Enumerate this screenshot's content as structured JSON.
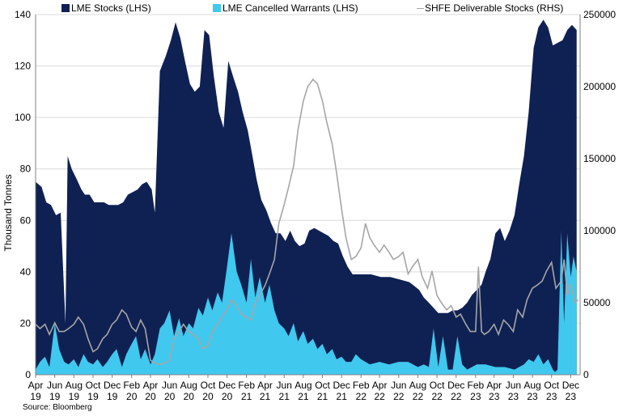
{
  "chart_data": {
    "type": "area",
    "ylabel": "Thousand Tonnes",
    "ylim": [
      0,
      140
    ],
    "y_ticks": [
      0,
      20,
      40,
      60,
      80,
      100,
      120,
      140
    ],
    "y2lim": [
      0,
      250000
    ],
    "y2_ticks": [
      0,
      50000,
      100000,
      150000,
      200000,
      250000
    ],
    "grid": true,
    "legend_placement": "top",
    "x_range": [
      "2019-04-01",
      "2023-12-31"
    ],
    "x_tick_labels": [
      {
        "date": "2019-04-01",
        "month": "Apr",
        "year": "19"
      },
      {
        "date": "2019-06-01",
        "month": "Jun",
        "year": "19"
      },
      {
        "date": "2019-08-01",
        "month": "Aug",
        "year": "19"
      },
      {
        "date": "2019-10-01",
        "month": "Oct",
        "year": "19"
      },
      {
        "date": "2019-12-01",
        "month": "Dec",
        "year": "19"
      },
      {
        "date": "2020-02-01",
        "month": "Feb",
        "year": "20"
      },
      {
        "date": "2020-04-01",
        "month": "Apr",
        "year": "20"
      },
      {
        "date": "2020-06-01",
        "month": "Jun",
        "year": "20"
      },
      {
        "date": "2020-08-01",
        "month": "Aug",
        "year": "20"
      },
      {
        "date": "2020-10-01",
        "month": "Oct",
        "year": "20"
      },
      {
        "date": "2020-12-01",
        "month": "Dec",
        "year": "20"
      },
      {
        "date": "2021-02-01",
        "month": "Feb",
        "year": "21"
      },
      {
        "date": "2021-04-01",
        "month": "Apr",
        "year": "21"
      },
      {
        "date": "2021-06-01",
        "month": "Jun",
        "year": "21"
      },
      {
        "date": "2021-08-01",
        "month": "Aug",
        "year": "21"
      },
      {
        "date": "2021-10-01",
        "month": "Oct",
        "year": "21"
      },
      {
        "date": "2021-12-01",
        "month": "Dec",
        "year": "21"
      },
      {
        "date": "2022-02-01",
        "month": "Feb",
        "year": "22"
      },
      {
        "date": "2022-04-01",
        "month": "Apr",
        "year": "22"
      },
      {
        "date": "2022-06-01",
        "month": "Jun",
        "year": "22"
      },
      {
        "date": "2022-08-01",
        "month": "Aug",
        "year": "22"
      },
      {
        "date": "2022-10-01",
        "month": "Oct",
        "year": "22"
      },
      {
        "date": "2022-12-01",
        "month": "Dec",
        "year": "22"
      },
      {
        "date": "2023-02-01",
        "month": "Feb",
        "year": "23"
      },
      {
        "date": "2023-04-01",
        "month": "Apr",
        "year": "23"
      },
      {
        "date": "2023-06-01",
        "month": "Jun",
        "year": "23"
      },
      {
        "date": "2023-08-01",
        "month": "Aug",
        "year": "23"
      },
      {
        "date": "2023-10-01",
        "month": "Oct",
        "year": "23"
      },
      {
        "date": "2023-12-01",
        "month": "Dec",
        "year": "23"
      }
    ],
    "source": "Source: Bloomberg",
    "series": [
      {
        "name": "LME Stocks (LHS)",
        "axis": "left",
        "type": "area",
        "color": "#0f2153",
        "x": [
          "2019-04-01",
          "2019-04-20",
          "2019-05-05",
          "2019-05-20",
          "2019-06-05",
          "2019-06-20",
          "2019-07-05",
          "2019-07-12",
          "2019-07-25",
          "2019-08-10",
          "2019-08-25",
          "2019-09-05",
          "2019-09-20",
          "2019-10-05",
          "2019-10-20",
          "2019-11-05",
          "2019-11-20",
          "2019-12-05",
          "2019-12-20",
          "2020-01-05",
          "2020-01-20",
          "2020-02-05",
          "2020-02-20",
          "2020-03-05",
          "2020-03-20",
          "2020-04-05",
          "2020-04-15",
          "2020-05-01",
          "2020-05-20",
          "2020-06-05",
          "2020-06-20",
          "2020-07-05",
          "2020-07-20",
          "2020-08-05",
          "2020-08-20",
          "2020-09-05",
          "2020-09-20",
          "2020-10-05",
          "2020-10-20",
          "2020-11-05",
          "2020-11-20",
          "2020-12-05",
          "2020-12-20",
          "2021-01-05",
          "2021-01-20",
          "2021-02-05",
          "2021-02-20",
          "2021-03-05",
          "2021-03-20",
          "2021-04-05",
          "2021-04-20",
          "2021-05-05",
          "2021-05-20",
          "2021-06-05",
          "2021-06-20",
          "2021-07-05",
          "2021-07-20",
          "2021-08-05",
          "2021-08-20",
          "2021-09-05",
          "2021-09-20",
          "2021-10-05",
          "2021-10-20",
          "2021-11-05",
          "2021-11-20",
          "2021-12-05",
          "2021-12-20",
          "2022-01-05",
          "2022-01-20",
          "2022-02-05",
          "2022-02-20",
          "2022-03-05",
          "2022-04-05",
          "2022-05-05",
          "2022-06-05",
          "2022-07-05",
          "2022-08-05",
          "2022-08-20",
          "2022-09-05",
          "2022-09-20",
          "2022-10-05",
          "2022-10-20",
          "2022-11-05",
          "2022-11-20",
          "2022-12-05",
          "2022-12-20",
          "2023-01-05",
          "2023-01-20",
          "2023-02-05",
          "2023-02-20",
          "2023-03-05",
          "2023-03-20",
          "2023-04-05",
          "2023-04-20",
          "2023-05-05",
          "2023-05-20",
          "2023-06-05",
          "2023-06-20",
          "2023-07-05",
          "2023-07-20",
          "2023-08-05",
          "2023-08-20",
          "2023-09-05",
          "2023-09-20",
          "2023-10-05",
          "2023-10-20",
          "2023-11-05",
          "2023-11-20",
          "2023-12-05",
          "2023-12-20"
        ],
        "values": [
          75,
          73,
          67,
          66,
          62,
          63,
          20,
          85,
          80,
          76,
          72,
          70,
          70,
          67,
          67,
          67,
          66,
          66,
          66,
          67,
          70,
          71,
          72,
          74,
          75,
          72,
          63,
          118,
          124,
          130,
          137,
          131,
          122,
          113,
          110,
          112,
          134,
          132,
          116,
          102,
          96,
          122,
          116,
          110,
          102,
          95,
          85,
          76,
          68,
          64,
          59,
          55,
          55,
          52,
          56,
          52,
          50,
          51,
          56,
          57,
          56,
          55,
          54,
          52,
          51,
          46,
          42,
          39,
          39,
          39,
          39,
          39,
          38,
          38,
          37,
          36,
          33,
          30,
          28,
          26,
          24,
          24,
          24,
          25,
          25,
          26,
          28,
          31,
          33,
          35,
          40,
          45,
          55,
          57,
          52,
          56,
          62,
          74,
          85,
          102,
          127,
          135,
          138,
          135,
          128,
          129,
          130,
          134,
          136,
          134
        ]
      },
      {
        "name": "LME Cancelled Warrants (LHS)",
        "axis": "left",
        "type": "area",
        "color": "#40c8ef",
        "x": [
          "2019-04-01",
          "2019-04-15",
          "2019-05-01",
          "2019-05-15",
          "2019-06-01",
          "2019-06-15",
          "2019-07-01",
          "2019-07-15",
          "2019-08-01",
          "2019-08-15",
          "2019-09-01",
          "2019-09-15",
          "2019-10-01",
          "2019-10-15",
          "2019-11-01",
          "2019-11-15",
          "2019-12-01",
          "2019-12-15",
          "2020-01-01",
          "2020-01-15",
          "2020-02-01",
          "2020-02-15",
          "2020-03-01",
          "2020-03-15",
          "2020-04-01",
          "2020-04-15",
          "2020-05-01",
          "2020-05-15",
          "2020-06-01",
          "2020-06-15",
          "2020-07-01",
          "2020-07-15",
          "2020-08-01",
          "2020-08-15",
          "2020-09-01",
          "2020-09-15",
          "2020-10-01",
          "2020-10-15",
          "2020-11-01",
          "2020-11-15",
          "2020-12-01",
          "2020-12-15",
          "2021-01-01",
          "2021-01-15",
          "2021-02-01",
          "2021-02-15",
          "2021-03-01",
          "2021-03-15",
          "2021-04-01",
          "2021-04-15",
          "2021-05-01",
          "2021-05-15",
          "2021-06-01",
          "2021-06-15",
          "2021-07-01",
          "2021-07-15",
          "2021-08-01",
          "2021-08-15",
          "2021-09-01",
          "2021-09-15",
          "2021-10-01",
          "2021-10-15",
          "2021-11-01",
          "2021-11-15",
          "2021-12-01",
          "2021-12-15",
          "2022-01-01",
          "2022-01-15",
          "2022-02-01",
          "2022-03-01",
          "2022-04-01",
          "2022-05-01",
          "2022-06-01",
          "2022-07-01",
          "2022-08-01",
          "2022-08-20",
          "2022-09-05",
          "2022-09-20",
          "2022-10-05",
          "2022-10-20",
          "2022-11-05",
          "2022-11-20",
          "2022-12-05",
          "2022-12-20",
          "2023-01-05",
          "2023-02-05",
          "2023-03-05",
          "2023-04-05",
          "2023-05-05",
          "2023-06-05",
          "2023-07-05",
          "2023-07-20",
          "2023-08-05",
          "2023-08-20",
          "2023-09-05",
          "2023-09-20",
          "2023-10-05",
          "2023-10-12",
          "2023-10-20",
          "2023-11-01",
          "2023-11-10",
          "2023-11-20",
          "2023-12-01",
          "2023-12-10",
          "2023-12-20"
        ],
        "values": [
          2,
          5,
          7,
          3,
          20,
          10,
          5,
          4,
          6,
          3,
          8,
          5,
          4,
          6,
          3,
          5,
          8,
          10,
          3,
          8,
          12,
          15,
          6,
          10,
          4,
          8,
          18,
          20,
          25,
          15,
          22,
          15,
          20,
          18,
          26,
          23,
          30,
          25,
          32,
          28,
          42,
          55,
          40,
          35,
          28,
          45,
          30,
          38,
          28,
          35,
          25,
          20,
          18,
          15,
          20,
          13,
          17,
          12,
          14,
          10,
          12,
          8,
          10,
          6,
          7,
          5,
          5,
          8,
          6,
          4,
          5,
          4,
          5,
          5,
          3,
          4,
          3,
          18,
          3,
          15,
          2,
          2,
          15,
          4,
          2,
          4,
          4,
          3,
          3,
          2,
          4,
          6,
          5,
          8,
          4,
          6,
          2,
          1,
          2,
          56,
          20,
          55,
          38,
          46,
          40
        ]
      },
      {
        "name": "SHFE Deliverable Stocks (RHS)",
        "axis": "right",
        "type": "line",
        "color": "#a6a6a6",
        "x": [
          "2019-04-01",
          "2019-04-15",
          "2019-05-01",
          "2019-05-15",
          "2019-06-01",
          "2019-06-15",
          "2019-07-01",
          "2019-07-15",
          "2019-08-01",
          "2019-08-15",
          "2019-09-01",
          "2019-09-15",
          "2019-10-01",
          "2019-10-15",
          "2019-11-01",
          "2019-11-15",
          "2019-12-01",
          "2019-12-15",
          "2020-01-01",
          "2020-01-15",
          "2020-02-01",
          "2020-02-15",
          "2020-03-01",
          "2020-03-15",
          "2020-04-01",
          "2020-04-15",
          "2020-05-01",
          "2020-05-15",
          "2020-06-01",
          "2020-06-15",
          "2020-07-01",
          "2020-07-15",
          "2020-08-01",
          "2020-08-15",
          "2020-09-01",
          "2020-09-15",
          "2020-10-01",
          "2020-10-15",
          "2020-11-01",
          "2020-11-15",
          "2020-12-01",
          "2020-12-15",
          "2021-01-01",
          "2021-01-15",
          "2021-02-01",
          "2021-02-15",
          "2021-03-01",
          "2021-03-15",
          "2021-04-01",
          "2021-04-15",
          "2021-05-01",
          "2021-05-15",
          "2021-06-01",
          "2021-06-15",
          "2021-07-01",
          "2021-07-15",
          "2021-08-01",
          "2021-08-15",
          "2021-09-01",
          "2021-09-15",
          "2021-10-01",
          "2021-10-15",
          "2021-11-01",
          "2021-11-15",
          "2021-12-01",
          "2021-12-15",
          "2022-01-01",
          "2022-01-15",
          "2022-02-01",
          "2022-02-15",
          "2022-03-01",
          "2022-03-15",
          "2022-04-01",
          "2022-04-15",
          "2022-05-01",
          "2022-05-15",
          "2022-06-01",
          "2022-06-15",
          "2022-07-01",
          "2022-07-15",
          "2022-08-01",
          "2022-08-15",
          "2022-09-01",
          "2022-09-15",
          "2022-10-01",
          "2022-10-15",
          "2022-11-01",
          "2022-11-15",
          "2022-12-01",
          "2022-12-15",
          "2023-01-01",
          "2023-01-15",
          "2023-02-01",
          "2023-02-10",
          "2023-02-20",
          "2023-03-01",
          "2023-03-15",
          "2023-04-01",
          "2023-04-15",
          "2023-05-01",
          "2023-05-15",
          "2023-06-01",
          "2023-06-15",
          "2023-07-01",
          "2023-07-15",
          "2023-08-01",
          "2023-08-15",
          "2023-09-01",
          "2023-09-15",
          "2023-10-01",
          "2023-10-15",
          "2023-11-01",
          "2023-11-10",
          "2023-11-20",
          "2023-12-01",
          "2023-12-15",
          "2023-12-25"
        ],
        "values": [
          35000,
          32000,
          35000,
          28000,
          36000,
          30000,
          30000,
          32000,
          35000,
          40000,
          35000,
          25000,
          16000,
          18000,
          25000,
          28000,
          35000,
          38000,
          45000,
          42000,
          33000,
          30000,
          38000,
          32000,
          10000,
          8000,
          7000,
          8000,
          10000,
          25000,
          30000,
          35000,
          30000,
          28000,
          25000,
          18000,
          20000,
          30000,
          35000,
          40000,
          45000,
          52000,
          48000,
          42000,
          40000,
          38000,
          50000,
          55000,
          62000,
          70000,
          80000,
          105000,
          118000,
          130000,
          145000,
          170000,
          190000,
          200000,
          205000,
          202000,
          190000,
          175000,
          160000,
          140000,
          115000,
          95000,
          80000,
          82000,
          88000,
          105000,
          95000,
          90000,
          85000,
          90000,
          85000,
          80000,
          82000,
          85000,
          70000,
          75000,
          80000,
          68000,
          60000,
          72000,
          55000,
          50000,
          45000,
          48000,
          40000,
          42000,
          35000,
          30000,
          30000,
          75000,
          30000,
          28000,
          30000,
          35000,
          28000,
          38000,
          35000,
          30000,
          45000,
          40000,
          52000,
          60000,
          62000,
          65000,
          72000,
          78000,
          60000,
          65000,
          80000,
          55000,
          62000,
          50000,
          52000
        ]
      }
    ]
  }
}
